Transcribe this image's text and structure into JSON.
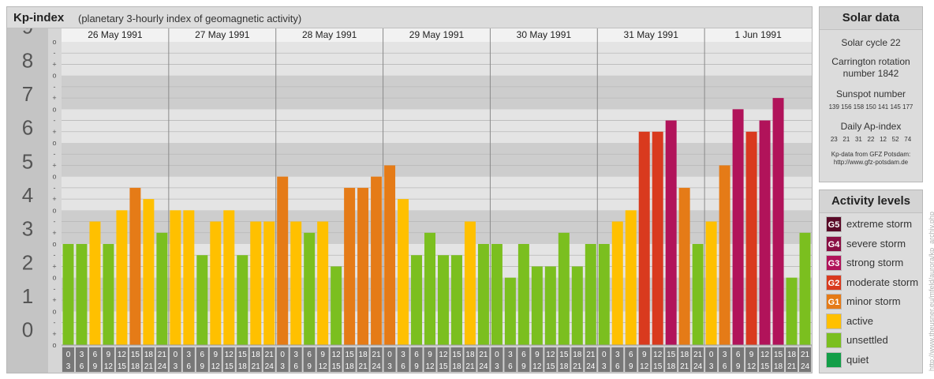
{
  "header": {
    "title": "Kp-index",
    "subtitle": "(planetary 3-hourly index of geomagnetic activity)"
  },
  "chart_data": {
    "type": "bar",
    "y_major_labels": [
      "9",
      "8",
      "7",
      "6",
      "5",
      "4",
      "3",
      "2",
      "1",
      "0"
    ],
    "y_minor_labels": [
      "o",
      "-",
      "+",
      "o",
      "-",
      "+",
      "o",
      "-",
      "+",
      "o",
      "-",
      "+",
      "o",
      "-",
      "+",
      "o",
      "-",
      "+",
      "o",
      "-",
      "+",
      "o",
      "-",
      "+",
      "o",
      "-",
      "+",
      "o"
    ],
    "ylim": [
      0,
      9
    ],
    "days": [
      {
        "date": "26 May 1991",
        "values": [
          3,
          3,
          3.667,
          3,
          4,
          4.667,
          4.333,
          3.333
        ]
      },
      {
        "date": "27 May 1991",
        "values": [
          4,
          4,
          2.667,
          3.667,
          4,
          2.667,
          3.667,
          3.667
        ]
      },
      {
        "date": "28 May 1991",
        "values": [
          5,
          3.667,
          3.333,
          3.667,
          2.333,
          4.667,
          4.667,
          5
        ]
      },
      {
        "date": "29 May 1991",
        "values": [
          5.333,
          4.333,
          2.667,
          3.333,
          2.667,
          2.667,
          3.667,
          3
        ]
      },
      {
        "date": "30 May 1991",
        "values": [
          3,
          2,
          3,
          2.333,
          2.333,
          3.333,
          2.333,
          3
        ]
      },
      {
        "date": "31 May 1991",
        "values": [
          3,
          3.667,
          4,
          6.333,
          6.333,
          6.667,
          4.667,
          3
        ]
      },
      {
        "date": "1 Jun 1991",
        "values": [
          3.667,
          5.333,
          7,
          6.333,
          6.667,
          7.333,
          2,
          3.333
        ]
      }
    ],
    "time_labels_top": [
      "0",
      "3",
      "6",
      "9",
      "12",
      "15",
      "18",
      "21"
    ],
    "time_labels_bottom": [
      "3",
      "6",
      "9",
      "12",
      "15",
      "18",
      "21",
      "24"
    ],
    "level_colors": {
      "quiet": "#139e48",
      "unsettled": "#7bbf1f",
      "active": "#ffc000",
      "minor_storm": "#e57b17",
      "moderate_storm": "#d93a1e",
      "strong_storm": "#b1135a",
      "severe_storm": "#8a0f44",
      "extreme_storm": "#5a0a28"
    }
  },
  "solar": {
    "title": "Solar data",
    "cycle": "Solar cycle 22",
    "carrington_1": "Carrington rotation",
    "carrington_2": "number 1842",
    "sunspot_title": "Sunspot number",
    "sunspot_values": "139 156 158 150 141 145 177",
    "ap_title": "Daily Ap-index",
    "ap_values": "23   21   31   22   12   52   74",
    "source_1": "Kp-data from GFZ Potsdam:",
    "source_2": "http://www.gfz-potsdam.de"
  },
  "activity": {
    "title": "Activity levels",
    "levels": [
      {
        "badge": "G5",
        "label": "extreme storm",
        "color": "#5a0a28"
      },
      {
        "badge": "G4",
        "label": "severe storm",
        "color": "#8a0f44"
      },
      {
        "badge": "G3",
        "label": "strong storm",
        "color": "#b1135a"
      },
      {
        "badge": "G2",
        "label": "moderate storm",
        "color": "#d93a1e"
      },
      {
        "badge": "G1",
        "label": "minor storm",
        "color": "#e57b17"
      },
      {
        "badge": "",
        "label": "active",
        "color": "#ffc000"
      },
      {
        "badge": "",
        "label": "unsettled",
        "color": "#7bbf1f"
      },
      {
        "badge": "",
        "label": "quiet",
        "color": "#139e48"
      }
    ]
  },
  "credit": "http://www.theusner.eu/mfeld/aurora/kp_archiv.php"
}
